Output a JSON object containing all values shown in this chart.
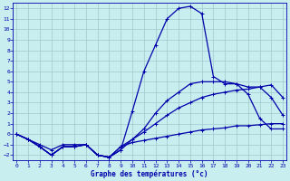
{
  "title": "Graphe des températures (°c)",
  "background_color": "#c8eef0",
  "grid_color": "#a0c8cc",
  "line_color": "#0000aa",
  "x_ticks": [
    0,
    1,
    2,
    3,
    4,
    5,
    6,
    7,
    8,
    9,
    10,
    11,
    12,
    13,
    14,
    15,
    16,
    17,
    18,
    19,
    20,
    21,
    22,
    23
  ],
  "y_ticks": [
    -2,
    -1,
    0,
    1,
    2,
    3,
    4,
    5,
    6,
    7,
    8,
    9,
    10,
    11,
    12
  ],
  "ylim": [
    -2.5,
    12.5
  ],
  "xlim": [
    -0.3,
    23.3
  ],
  "line1": [
    0.0,
    -0.5,
    -1.0,
    -1.5,
    -1.0,
    -1.0,
    -1.0,
    -2.0,
    -2.2,
    -1.5,
    2.2,
    6.0,
    8.5,
    11.0,
    12.0,
    12.2,
    11.5,
    5.5,
    4.8,
    4.8,
    3.8,
    1.5,
    0.5,
    0.5
  ],
  "line2": [
    0.0,
    -0.5,
    -1.2,
    -2.0,
    -1.2,
    -1.2,
    -1.0,
    -2.0,
    -2.2,
    -1.2,
    -0.8,
    -0.6,
    -0.4,
    -0.2,
    0.0,
    0.2,
    0.4,
    0.5,
    0.6,
    0.8,
    0.8,
    0.9,
    1.0,
    1.0
  ],
  "line3": [
    0.0,
    -0.5,
    -1.2,
    -2.0,
    -1.2,
    -1.2,
    -1.0,
    -2.0,
    -2.2,
    -1.2,
    -0.5,
    0.2,
    1.0,
    1.8,
    2.5,
    3.0,
    3.5,
    3.8,
    4.0,
    4.2,
    4.3,
    4.5,
    4.7,
    3.5
  ],
  "line4": [
    0.0,
    -0.5,
    -1.2,
    -2.0,
    -1.2,
    -1.2,
    -1.0,
    -2.0,
    -2.2,
    -1.5,
    -0.5,
    0.5,
    2.0,
    3.2,
    4.0,
    4.8,
    5.0,
    5.0,
    5.0,
    4.8,
    4.5,
    4.5,
    3.5,
    1.8
  ]
}
